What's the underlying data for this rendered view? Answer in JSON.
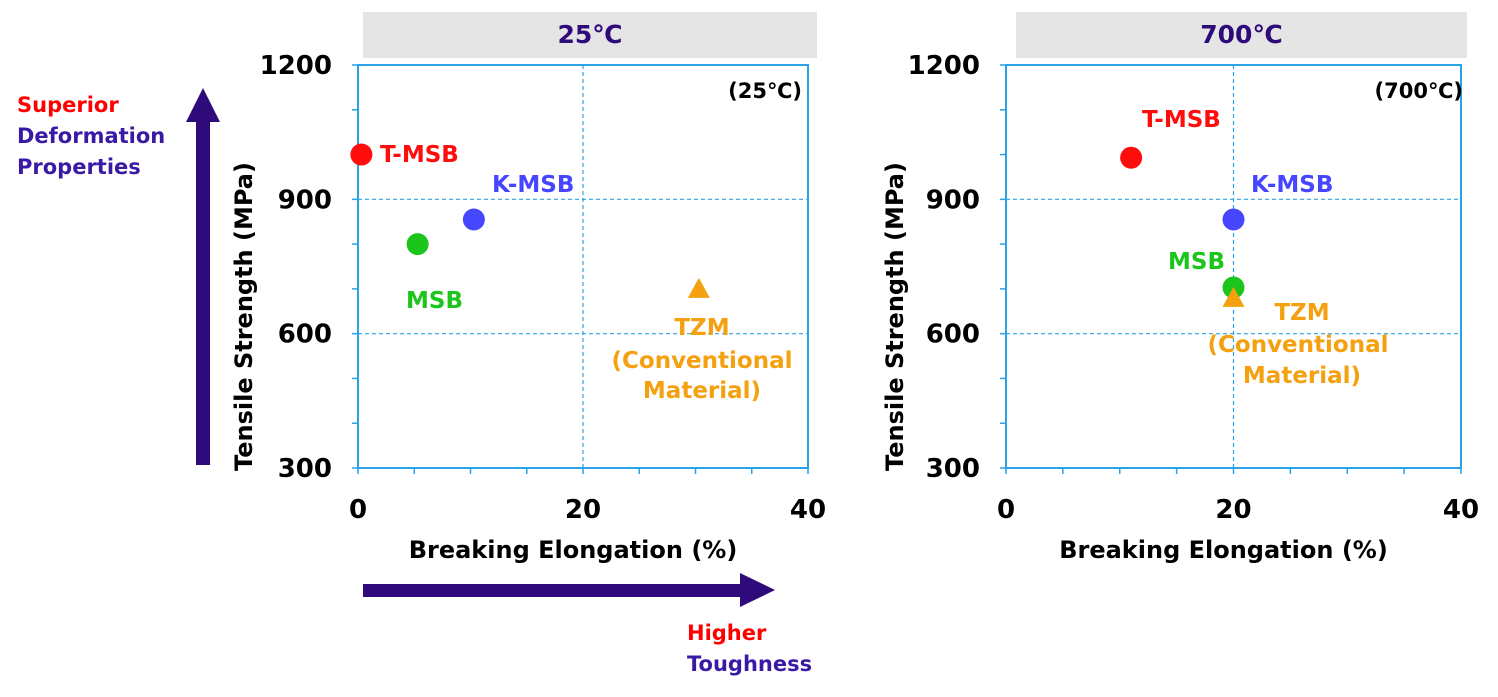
{
  "annotations": {
    "vertical_arrow": {
      "line1": "Superior",
      "line2": "Deformation",
      "line3": "Properties"
    },
    "horizontal_arrow": {
      "line1": "Higher",
      "line2": "Toughness"
    }
  },
  "colors": {
    "arrow": "#2e0a7a",
    "axis": "#29a3e8",
    "grid": "#29a3e8",
    "header_bg": "#e5e5e5",
    "header_text": "#2e0a7a",
    "red": "#ff0000",
    "purple": "#3a1aa5",
    "T-MSB": "#ff0d0d",
    "K-MSB": "#4646ff",
    "MSB": "#1bc51b",
    "TZM": "#f5a00f"
  },
  "chart_data": [
    {
      "type": "scatter",
      "header": "25℃",
      "inset_label": "(25℃)",
      "xlabel": "Breaking Elongation (%)",
      "ylabel": "Tensile Strength (MPa)",
      "xlim": [
        0,
        40
      ],
      "ylim": [
        300,
        1200
      ],
      "xticks": [
        0,
        20,
        40
      ],
      "yticks": [
        300,
        600,
        900,
        1200
      ],
      "grid": true,
      "series": [
        {
          "name": "T-MSB",
          "marker": "circle",
          "x": 0.3,
          "y": 1000,
          "label_lines": [
            "T-MSB"
          ]
        },
        {
          "name": "K-MSB",
          "marker": "circle",
          "x": 10.3,
          "y": 855,
          "label_lines": [
            "K-MSB"
          ]
        },
        {
          "name": "MSB",
          "marker": "circle",
          "x": 5.3,
          "y": 800,
          "label_lines": [
            "MSB"
          ]
        },
        {
          "name": "TZM",
          "marker": "triangle",
          "x": 30.3,
          "y": 700,
          "label_lines": [
            "TZM",
            "(Conventional",
            "Material)"
          ]
        }
      ]
    },
    {
      "type": "scatter",
      "header": "700℃",
      "inset_label": "(700℃)",
      "xlabel": "Breaking Elongation (%)",
      "ylabel": "Tensile Strength (MPa)",
      "xlim": [
        0,
        40
      ],
      "ylim": [
        300,
        1200
      ],
      "xticks": [
        0,
        20,
        40
      ],
      "yticks": [
        300,
        600,
        900,
        1200
      ],
      "grid": true,
      "series": [
        {
          "name": "T-MSB",
          "marker": "circle",
          "x": 11,
          "y": 993,
          "label_lines": [
            "T-MSB"
          ]
        },
        {
          "name": "K-MSB",
          "marker": "circle",
          "x": 20,
          "y": 855,
          "label_lines": [
            "K-MSB"
          ]
        },
        {
          "name": "MSB",
          "marker": "circle",
          "x": 20,
          "y": 703,
          "label_lines": [
            "MSB"
          ]
        },
        {
          "name": "TZM",
          "marker": "triangle",
          "x": 20,
          "y": 680,
          "label_lines": [
            "TZM",
            "(Conventional",
            "Material)"
          ]
        }
      ]
    }
  ]
}
